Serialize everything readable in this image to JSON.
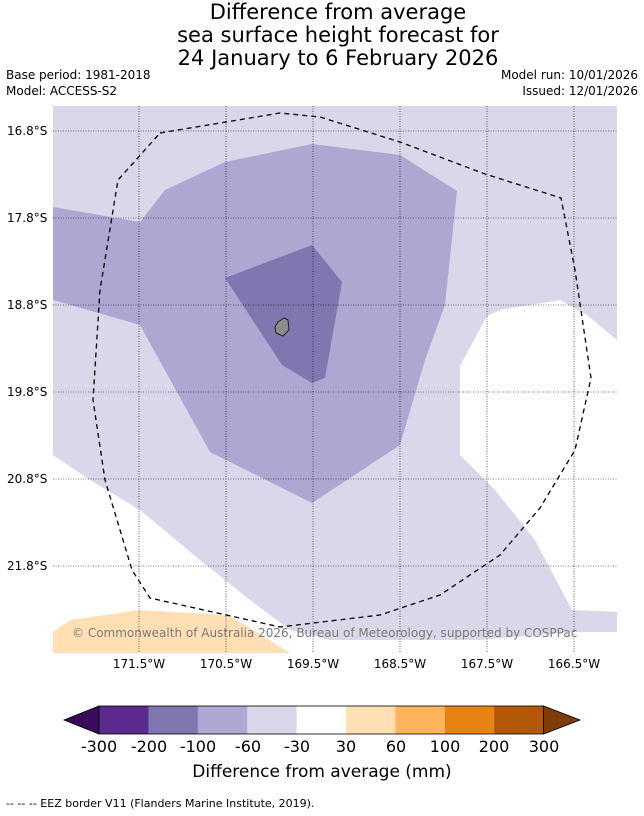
{
  "title": {
    "line1": "Difference from average",
    "line2": "sea surface height forecast for",
    "line3": "24 January to 6 February 2026"
  },
  "info": {
    "base_period": "Base period: 1981-2018",
    "model": "Model: ACCESS-S2",
    "model_run": "Model run: 10/01/2026",
    "issued": "Issued: 12/01/2026"
  },
  "map": {
    "lat_ticks": [
      "16.8°S",
      "17.8°S",
      "18.8°S",
      "19.8°S",
      "20.8°S",
      "21.8°S"
    ],
    "lon_ticks": [
      "171.5°W",
      "170.5°W",
      "169.5°W",
      "168.5°W",
      "167.5°W",
      "166.5°W"
    ],
    "copyright": "© Commonwealth of Australia 2026, Bureau of Meteorology, supported by COSPPac",
    "colors": {
      "band_-100_-60": "#aea7d1",
      "band_-200_-100": "#8176b0",
      "band_-60_-30": "#d8d8ea",
      "band_-30_30": "#ffffff",
      "band_30_60": "#ffdfb3",
      "land": "#8c8c8c",
      "eez_line": "#000000"
    }
  },
  "colorbar": {
    "labels": [
      "-300",
      "-200",
      "-100",
      "-60",
      "-30",
      "30",
      "60",
      "100",
      "200",
      "300"
    ],
    "colors": [
      "#3b0a5a",
      "#5c2a8e",
      "#8176b0",
      "#aea7d1",
      "#d8d8ea",
      "#ffffff",
      "#ffdfb3",
      "#fcb55d",
      "#e58412",
      "#b35809",
      "#7f3b08"
    ],
    "title": "Difference from average (mm)"
  },
  "legend": {
    "eez_note": "-- -- -- EEZ border V11 (Flanders Marine Institute, 2019)."
  }
}
